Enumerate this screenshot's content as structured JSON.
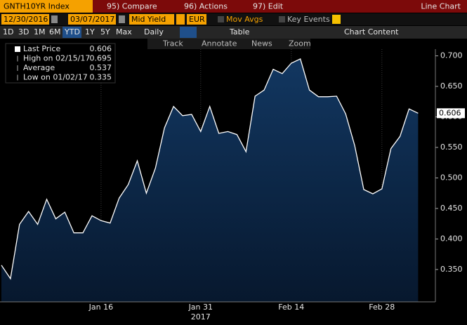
{
  "toolbar": {
    "security": "GNTH10YR Index",
    "menus": [
      "95) Compare",
      "96) Actions",
      "97) Edit"
    ],
    "view": "Line Chart",
    "start_date": "12/30/2016",
    "end_date": "03/07/2017",
    "field": "Mid Yield",
    "currency": "EUR",
    "checkboxes": [
      "Mov Avgs",
      "Key Events"
    ],
    "periods": [
      "1D",
      "3D",
      "1M",
      "6M",
      "YTD",
      "1Y",
      "5Y",
      "Max"
    ],
    "selected_period": "YTD",
    "frequency": "Daily",
    "table": "Table",
    "chart_content": "Chart Content",
    "tools": [
      "Track",
      "Annotate",
      "News",
      "Zoom"
    ]
  },
  "chart_data": {
    "type": "area",
    "categories": [
      null,
      null,
      null,
      null,
      null,
      null,
      null,
      null,
      null,
      null,
      null,
      "Jan 16",
      null,
      null,
      null,
      null,
      null,
      null,
      null,
      null,
      null,
      null,
      "Jan 31",
      null,
      null,
      null,
      null,
      null,
      null,
      null,
      null,
      null,
      "Feb 14",
      null,
      null,
      null,
      null,
      null,
      null,
      null,
      null,
      null,
      "Feb 28",
      null,
      null,
      null,
      null
    ],
    "x_sublabel": "2017",
    "series": [
      {
        "name": "Last Price",
        "color": "#ffffff",
        "fill": "#0f3056",
        "values": [
          0.357,
          0.335,
          0.424,
          0.445,
          0.424,
          0.465,
          0.433,
          0.444,
          0.41,
          0.41,
          0.438,
          0.43,
          0.426,
          0.467,
          0.489,
          0.528,
          0.475,
          0.516,
          0.582,
          0.617,
          0.602,
          0.604,
          0.576,
          0.617,
          0.573,
          0.576,
          0.571,
          0.543,
          0.634,
          0.644,
          0.678,
          0.671,
          0.688,
          0.695,
          0.644,
          0.633,
          0.633,
          0.634,
          0.605,
          0.553,
          0.481,
          0.474,
          0.482,
          0.548,
          0.568,
          0.613,
          0.606
        ]
      }
    ],
    "legend_items": [
      {
        "label": "Last Price",
        "value": 0.606
      },
      {
        "label": "High on 02/15/17",
        "value": 0.695
      },
      {
        "label": "Average",
        "value": 0.537
      },
      {
        "label": "Low on 01/02/17",
        "value": 0.335
      }
    ],
    "ylim": [
      0.297,
      0.711
    ],
    "yticks": [
      {
        "value": 0.35,
        "label": "0.350"
      },
      {
        "value": 0.4,
        "label": "0.400"
      },
      {
        "value": 0.45,
        "label": "0.450"
      },
      {
        "value": 0.5,
        "label": "0.500"
      },
      {
        "value": 0.55,
        "label": "0.550"
      },
      {
        "value": 0.6,
        "label": "0.600"
      },
      {
        "value": 0.65,
        "label": "0.650"
      },
      {
        "value": 0.7,
        "label": "0.700"
      }
    ],
    "grid": true
  }
}
